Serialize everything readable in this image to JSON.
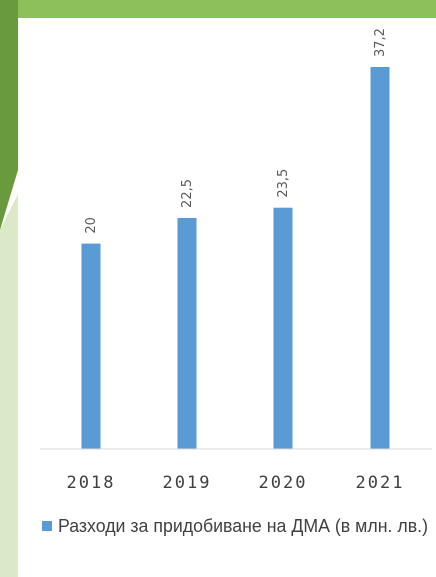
{
  "theme": {
    "bar_color": "#5b9bd5",
    "deco_dark_green": "#6a9a3e",
    "deco_mid_green": "#8dc05a",
    "deco_light_green": "#dbe9c8"
  },
  "chart_data": {
    "type": "bar",
    "categories": [
      "2018",
      "2019",
      "2020",
      "2021"
    ],
    "series": [
      {
        "name": "Разходи за придобиване на ДМА (в млн. лв.)",
        "values": [
          20,
          22.5,
          23.5,
          37.2
        ],
        "value_labels": [
          "20",
          "22,5",
          "23,5",
          "37,2"
        ]
      }
    ],
    "ylim": [
      0,
      37.2
    ],
    "grid": false,
    "legend_position": "bottom"
  }
}
